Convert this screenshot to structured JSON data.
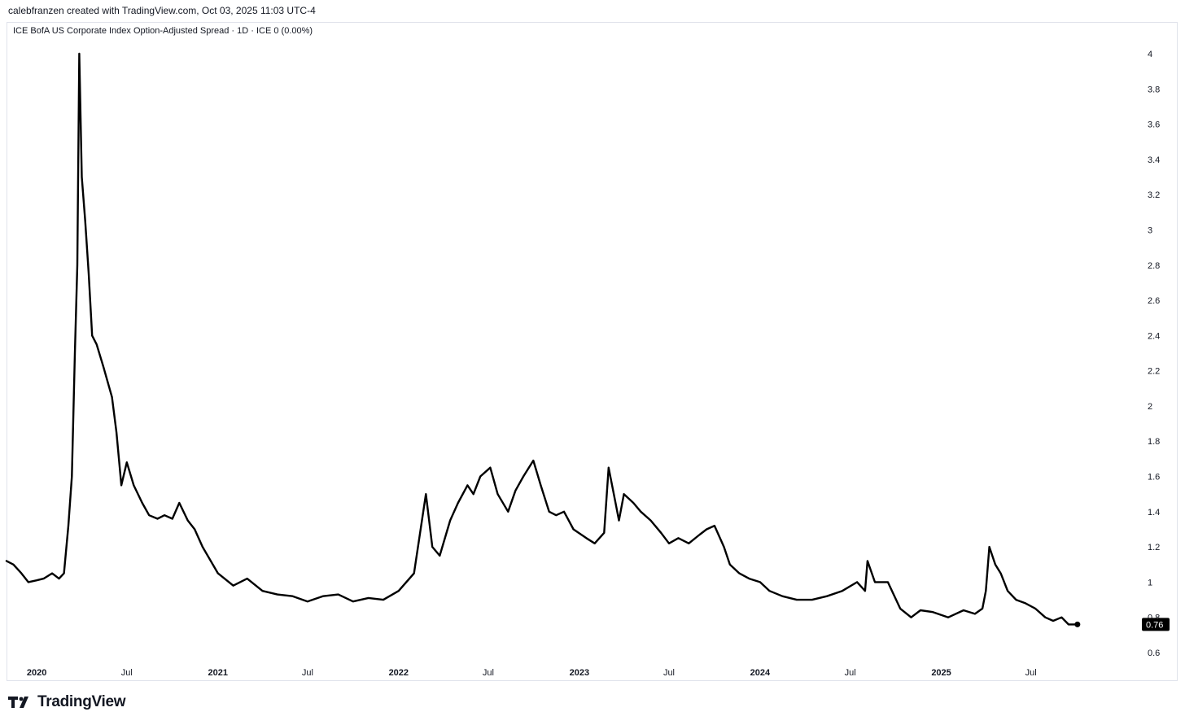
{
  "header": {
    "text": "calebfranzen created with TradingView.com, Oct 03, 2025 11:03 UTC-4"
  },
  "legend": {
    "text": "ICE BofA US Corporate Index Option-Adjusted Spread · 1D · ICE  0 (0.00%)"
  },
  "footer": {
    "brand": "TradingView",
    "logo_icon": "tradingview-logo-icon"
  },
  "colors": {
    "line": "#000000",
    "grid_frame": "#e0e3eb",
    "price_label_bg": "#000000"
  },
  "chart_data": {
    "type": "line",
    "title": "ICE BofA US Corporate Index Option-Adjusted Spread",
    "ylim": [
      0.6,
      4.0
    ],
    "yticks": [
      0.6,
      0.8,
      1,
      1.2,
      1.4,
      1.6,
      1.8,
      2,
      2.2,
      2.4,
      2.6,
      2.8,
      3,
      3.2,
      3.4,
      3.6,
      3.8,
      4
    ],
    "xlim": [
      "2019-11-01",
      "2025-12-31"
    ],
    "xticks": [
      {
        "date": "2020-01-01",
        "label": "2020",
        "year": true
      },
      {
        "date": "2020-07-01",
        "label": "Jul",
        "year": false
      },
      {
        "date": "2021-01-01",
        "label": "2021",
        "year": true
      },
      {
        "date": "2021-07-01",
        "label": "Jul",
        "year": false
      },
      {
        "date": "2022-01-01",
        "label": "2022",
        "year": true
      },
      {
        "date": "2022-07-01",
        "label": "Jul",
        "year": false
      },
      {
        "date": "2023-01-01",
        "label": "2023",
        "year": true
      },
      {
        "date": "2023-07-01",
        "label": "Jul",
        "year": false
      },
      {
        "date": "2024-01-01",
        "label": "2024",
        "year": true
      },
      {
        "date": "2024-07-01",
        "label": "Jul",
        "year": false
      },
      {
        "date": "2025-01-01",
        "label": "2025",
        "year": true
      },
      {
        "date": "2025-07-01",
        "label": "Jul",
        "year": false
      }
    ],
    "last_value": "0.76",
    "series": [
      {
        "x": [
          "2019-11-01",
          "2019-11-15",
          "2019-12-01",
          "2019-12-15",
          "2020-01-01",
          "2020-01-15",
          "2020-02-01",
          "2020-02-15",
          "2020-02-25",
          "2020-03-05",
          "2020-03-12",
          "2020-03-18",
          "2020-03-23",
          "2020-03-27",
          "2020-04-01",
          "2020-04-08",
          "2020-04-15",
          "2020-04-22",
          "2020-05-01",
          "2020-05-15",
          "2020-06-01",
          "2020-06-10",
          "2020-06-20",
          "2020-07-01",
          "2020-07-15",
          "2020-08-01",
          "2020-08-15",
          "2020-09-01",
          "2020-09-15",
          "2020-10-01",
          "2020-10-15",
          "2020-11-01",
          "2020-11-15",
          "2020-12-01",
          "2021-01-01",
          "2021-02-01",
          "2021-03-01",
          "2021-04-01",
          "2021-05-01",
          "2021-06-01",
          "2021-07-01",
          "2021-08-01",
          "2021-09-01",
          "2021-10-01",
          "2021-11-01",
          "2021-12-01",
          "2022-01-01",
          "2022-02-01",
          "2022-02-25",
          "2022-03-10",
          "2022-03-25",
          "2022-04-15",
          "2022-05-01",
          "2022-05-20",
          "2022-06-01",
          "2022-06-15",
          "2022-07-05",
          "2022-07-20",
          "2022-08-10",
          "2022-08-25",
          "2022-09-10",
          "2022-09-30",
          "2022-10-15",
          "2022-11-01",
          "2022-11-15",
          "2022-12-01",
          "2022-12-20",
          "2023-01-15",
          "2023-02-01",
          "2023-02-20",
          "2023-03-01",
          "2023-03-15",
          "2023-03-22",
          "2023-04-01",
          "2023-04-20",
          "2023-05-05",
          "2023-05-25",
          "2023-06-15",
          "2023-07-01",
          "2023-07-20",
          "2023-08-10",
          "2023-09-01",
          "2023-09-15",
          "2023-10-01",
          "2023-10-20",
          "2023-11-01",
          "2023-11-20",
          "2023-12-10",
          "2024-01-01",
          "2024-01-20",
          "2024-02-15",
          "2024-03-15",
          "2024-04-15",
          "2024-05-15",
          "2024-06-15",
          "2024-07-15",
          "2024-07-31",
          "2024-08-05",
          "2024-08-20",
          "2024-09-15",
          "2024-10-10",
          "2024-11-01",
          "2024-11-20",
          "2024-12-15",
          "2025-01-15",
          "2025-02-15",
          "2025-03-10",
          "2025-03-25",
          "2025-04-01",
          "2025-04-08",
          "2025-04-20",
          "2025-05-01",
          "2025-05-15",
          "2025-06-01",
          "2025-06-20",
          "2025-07-10",
          "2025-07-30",
          "2025-08-15",
          "2025-09-01",
          "2025-09-15",
          "2025-10-03"
        ],
        "y": [
          1.12,
          1.1,
          1.05,
          1.0,
          1.01,
          1.02,
          1.05,
          1.02,
          1.05,
          1.32,
          1.6,
          2.3,
          2.8,
          4.0,
          3.3,
          3.05,
          2.75,
          2.4,
          2.35,
          2.22,
          2.05,
          1.85,
          1.55,
          1.68,
          1.55,
          1.45,
          1.38,
          1.36,
          1.38,
          1.36,
          1.45,
          1.35,
          1.3,
          1.2,
          1.05,
          0.98,
          1.02,
          0.95,
          0.93,
          0.92,
          0.89,
          0.92,
          0.93,
          0.89,
          0.91,
          0.9,
          0.95,
          1.05,
          1.5,
          1.2,
          1.15,
          1.35,
          1.45,
          1.55,
          1.5,
          1.6,
          1.65,
          1.5,
          1.4,
          1.52,
          1.6,
          1.69,
          1.55,
          1.4,
          1.38,
          1.4,
          1.3,
          1.25,
          1.22,
          1.28,
          1.65,
          1.45,
          1.35,
          1.5,
          1.45,
          1.4,
          1.35,
          1.28,
          1.22,
          1.25,
          1.22,
          1.27,
          1.3,
          1.32,
          1.2,
          1.1,
          1.05,
          1.02,
          1.0,
          0.95,
          0.92,
          0.9,
          0.9,
          0.92,
          0.95,
          1.0,
          0.95,
          1.12,
          1.0,
          1.0,
          0.85,
          0.8,
          0.84,
          0.83,
          0.8,
          0.84,
          0.82,
          0.85,
          0.95,
          1.2,
          1.1,
          1.05,
          0.95,
          0.9,
          0.88,
          0.85,
          0.8,
          0.78,
          0.8,
          0.76,
          0.76
        ]
      }
    ]
  }
}
